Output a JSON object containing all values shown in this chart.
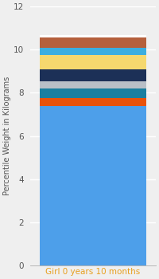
{
  "category": "Girl 0 years 10 months",
  "ylabel": "Percentile Weight in Kilograms",
  "ylim": [
    0,
    12
  ],
  "yticks": [
    0,
    2,
    4,
    6,
    8,
    10,
    12
  ],
  "segments": [
    {
      "value": 7.4,
      "color": "#4D9FEA"
    },
    {
      "value": 0.35,
      "color": "#E8520A"
    },
    {
      "value": 0.45,
      "color": "#1A7FA0"
    },
    {
      "value": 0.35,
      "color": "#B8BFC7"
    },
    {
      "value": 0.55,
      "color": "#1C3057"
    },
    {
      "value": 0.65,
      "color": "#F5D86E"
    },
    {
      "value": 0.35,
      "color": "#3BAEE0"
    },
    {
      "value": 0.45,
      "color": "#B5603C"
    },
    {
      "value": 0.12,
      "color": "#FFFFFF"
    }
  ],
  "background_color": "#EFEFEF",
  "bar_width": 0.85,
  "ylabel_fontsize": 7,
  "tick_fontsize": 7.5,
  "xlabel_color": "#E8A020",
  "ylabel_color": "#555555",
  "ytick_color": "#555555",
  "grid_color": "#FFFFFF",
  "spine_color": "#AAAAAA"
}
